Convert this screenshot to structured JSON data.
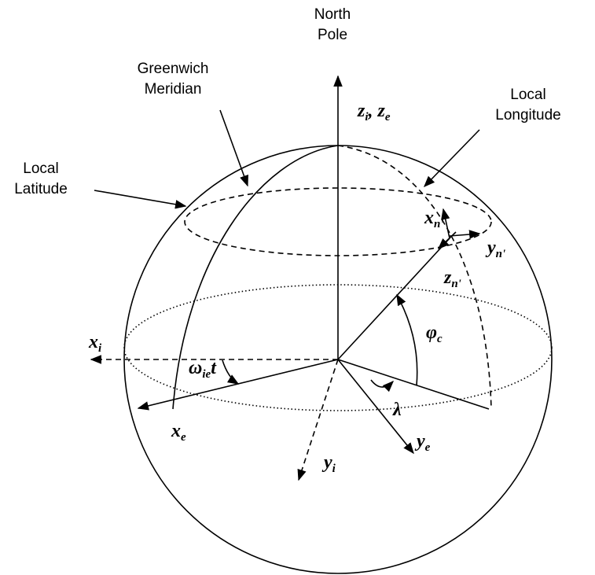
{
  "labels": {
    "north_pole": [
      "North",
      "Pole"
    ],
    "greenwich": [
      "Greenwich",
      "Meridian"
    ],
    "local_longitude": [
      "Local",
      "Longitude"
    ],
    "local_latitude": [
      "Local",
      "Latitude"
    ]
  },
  "symbols": {
    "z_axis": [
      {
        "base": "z",
        "sub": "i"
      },
      {
        "sep": ", "
      },
      {
        "base": "z",
        "sub": "e"
      }
    ],
    "x_n": {
      "base": "x",
      "sub": "n'"
    },
    "y_n": {
      "base": "y",
      "sub": "n'"
    },
    "z_n": {
      "base": "z",
      "sub": "n'"
    },
    "phi": {
      "base": "φ",
      "sub": "c"
    },
    "x_i": {
      "base": "x",
      "sub": "i"
    },
    "omega": {
      "base": "ω",
      "sub": "ie",
      "tail": "t"
    },
    "lambda": {
      "base": "λ"
    },
    "x_e": {
      "base": "x",
      "sub": "e"
    },
    "y_e": {
      "base": "y",
      "sub": "e"
    },
    "y_i": {
      "base": "y",
      "sub": "i"
    }
  }
}
